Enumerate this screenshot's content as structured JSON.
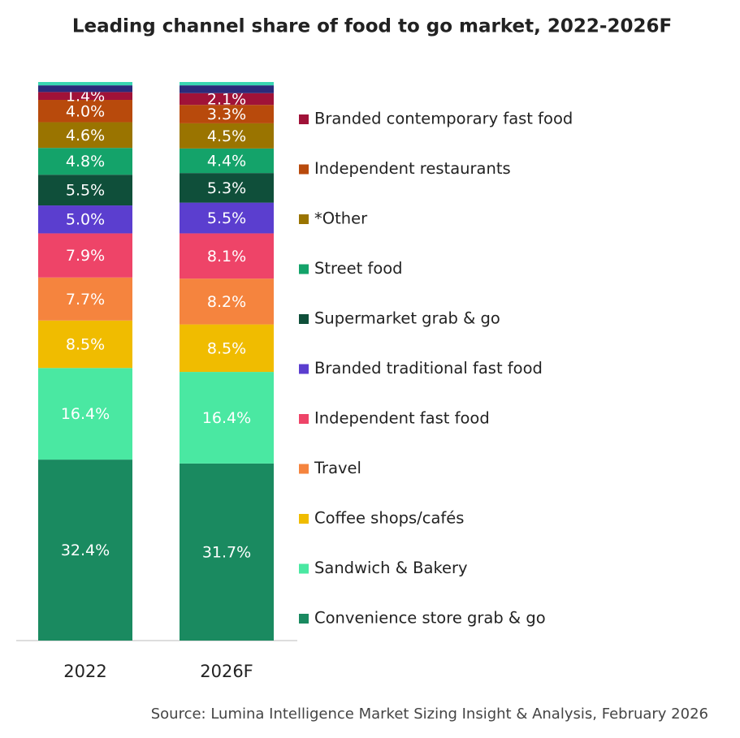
{
  "chart_data": {
    "type": "stacked-bar",
    "title": "Leading channel share of food to go market, 2022-2026F",
    "source": "Source: Lumina Intelligence Market Sizing Insight & Analysis, February 2026",
    "categories": [
      "2022",
      "2026F"
    ],
    "ylim": [
      0,
      100
    ],
    "series": [
      {
        "name": "Convenience store grab & go",
        "color": "#1a8a60",
        "values": [
          32.4,
          31.7
        ],
        "value_labels": [
          "32.4%",
          "31.7%"
        ]
      },
      {
        "name": "Sandwich & Bakery",
        "color": "#4ae8a2",
        "values": [
          16.4,
          16.4
        ],
        "value_labels": [
          "16.4%",
          "16.4%"
        ]
      },
      {
        "name": "Coffee shops/cafés",
        "color": "#f0bc00",
        "values": [
          8.5,
          8.5
        ],
        "value_labels": [
          "8.5%",
          "8.5%"
        ]
      },
      {
        "name": "Travel",
        "color": "#f5843e",
        "values": [
          7.7,
          8.2
        ],
        "value_labels": [
          "7.7%",
          "8.2%"
        ]
      },
      {
        "name": "Independent fast food",
        "color": "#ee4468",
        "values": [
          7.9,
          8.1
        ],
        "value_labels": [
          "7.9%",
          "8.1%"
        ]
      },
      {
        "name": "Branded traditional fast food",
        "color": "#5b3ecf",
        "values": [
          5.0,
          5.5
        ],
        "value_labels": [
          "5.0%",
          "5.5%"
        ]
      },
      {
        "name": "Supermarket grab & go",
        "color": "#0f4f3a",
        "values": [
          5.5,
          5.3
        ],
        "value_labels": [
          "5.5%",
          "5.3%"
        ]
      },
      {
        "name": "Street food",
        "color": "#14a36a",
        "values": [
          4.8,
          4.4
        ],
        "value_labels": [
          "4.8%",
          "4.4%"
        ]
      },
      {
        "name": "*Other",
        "color": "#9a7400",
        "values": [
          4.6,
          4.5
        ],
        "value_labels": [
          "4.6%",
          "4.5%"
        ]
      },
      {
        "name": "Independent restaurants",
        "color": "#b84a0c",
        "values": [
          4.0,
          3.3
        ],
        "value_labels": [
          "4.0%",
          "3.3%"
        ]
      },
      {
        "name": "Branded contemporary fast food",
        "color": "#a01238",
        "values": [
          1.4,
          2.1
        ],
        "value_labels": [
          "1.4%",
          "2.1%"
        ]
      },
      {
        "name": null,
        "color": "#2b2a7a",
        "values": [
          1.2,
          1.4
        ]
      },
      {
        "name": null,
        "color": "#3ad6b2",
        "values": [
          0.6,
          0.6
        ]
      }
    ]
  }
}
